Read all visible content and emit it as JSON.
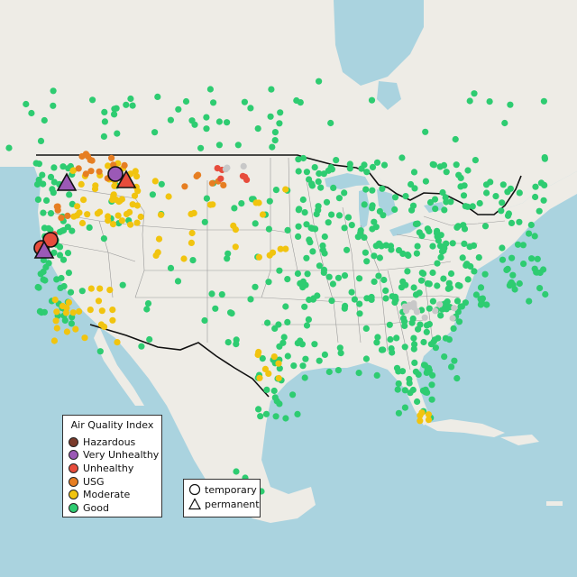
{
  "legend": {
    "title": "Air Quality Index",
    "categories": [
      {
        "label": "Hazardous",
        "color": "#7a3a2a"
      },
      {
        "label": "Very Unhealthy",
        "color": "#9b59b6"
      },
      {
        "label": "Unhealthy",
        "color": "#e74c3c"
      },
      {
        "label": "USG",
        "color": "#e67e22"
      },
      {
        "label": "Moderate",
        "color": "#f1c40f"
      },
      {
        "label": "Good",
        "color": "#2ecc71"
      }
    ]
  },
  "shape_legend": {
    "items": [
      {
        "label": "temporary",
        "shape": "circle"
      },
      {
        "label": "permanent",
        "shape": "triangle"
      }
    ]
  },
  "colors": {
    "ocean": "#aad3df",
    "land": "#eeece6",
    "border": "#111111",
    "state_line": "#9a9a9a",
    "no_data": "#c8c8c8"
  }
}
